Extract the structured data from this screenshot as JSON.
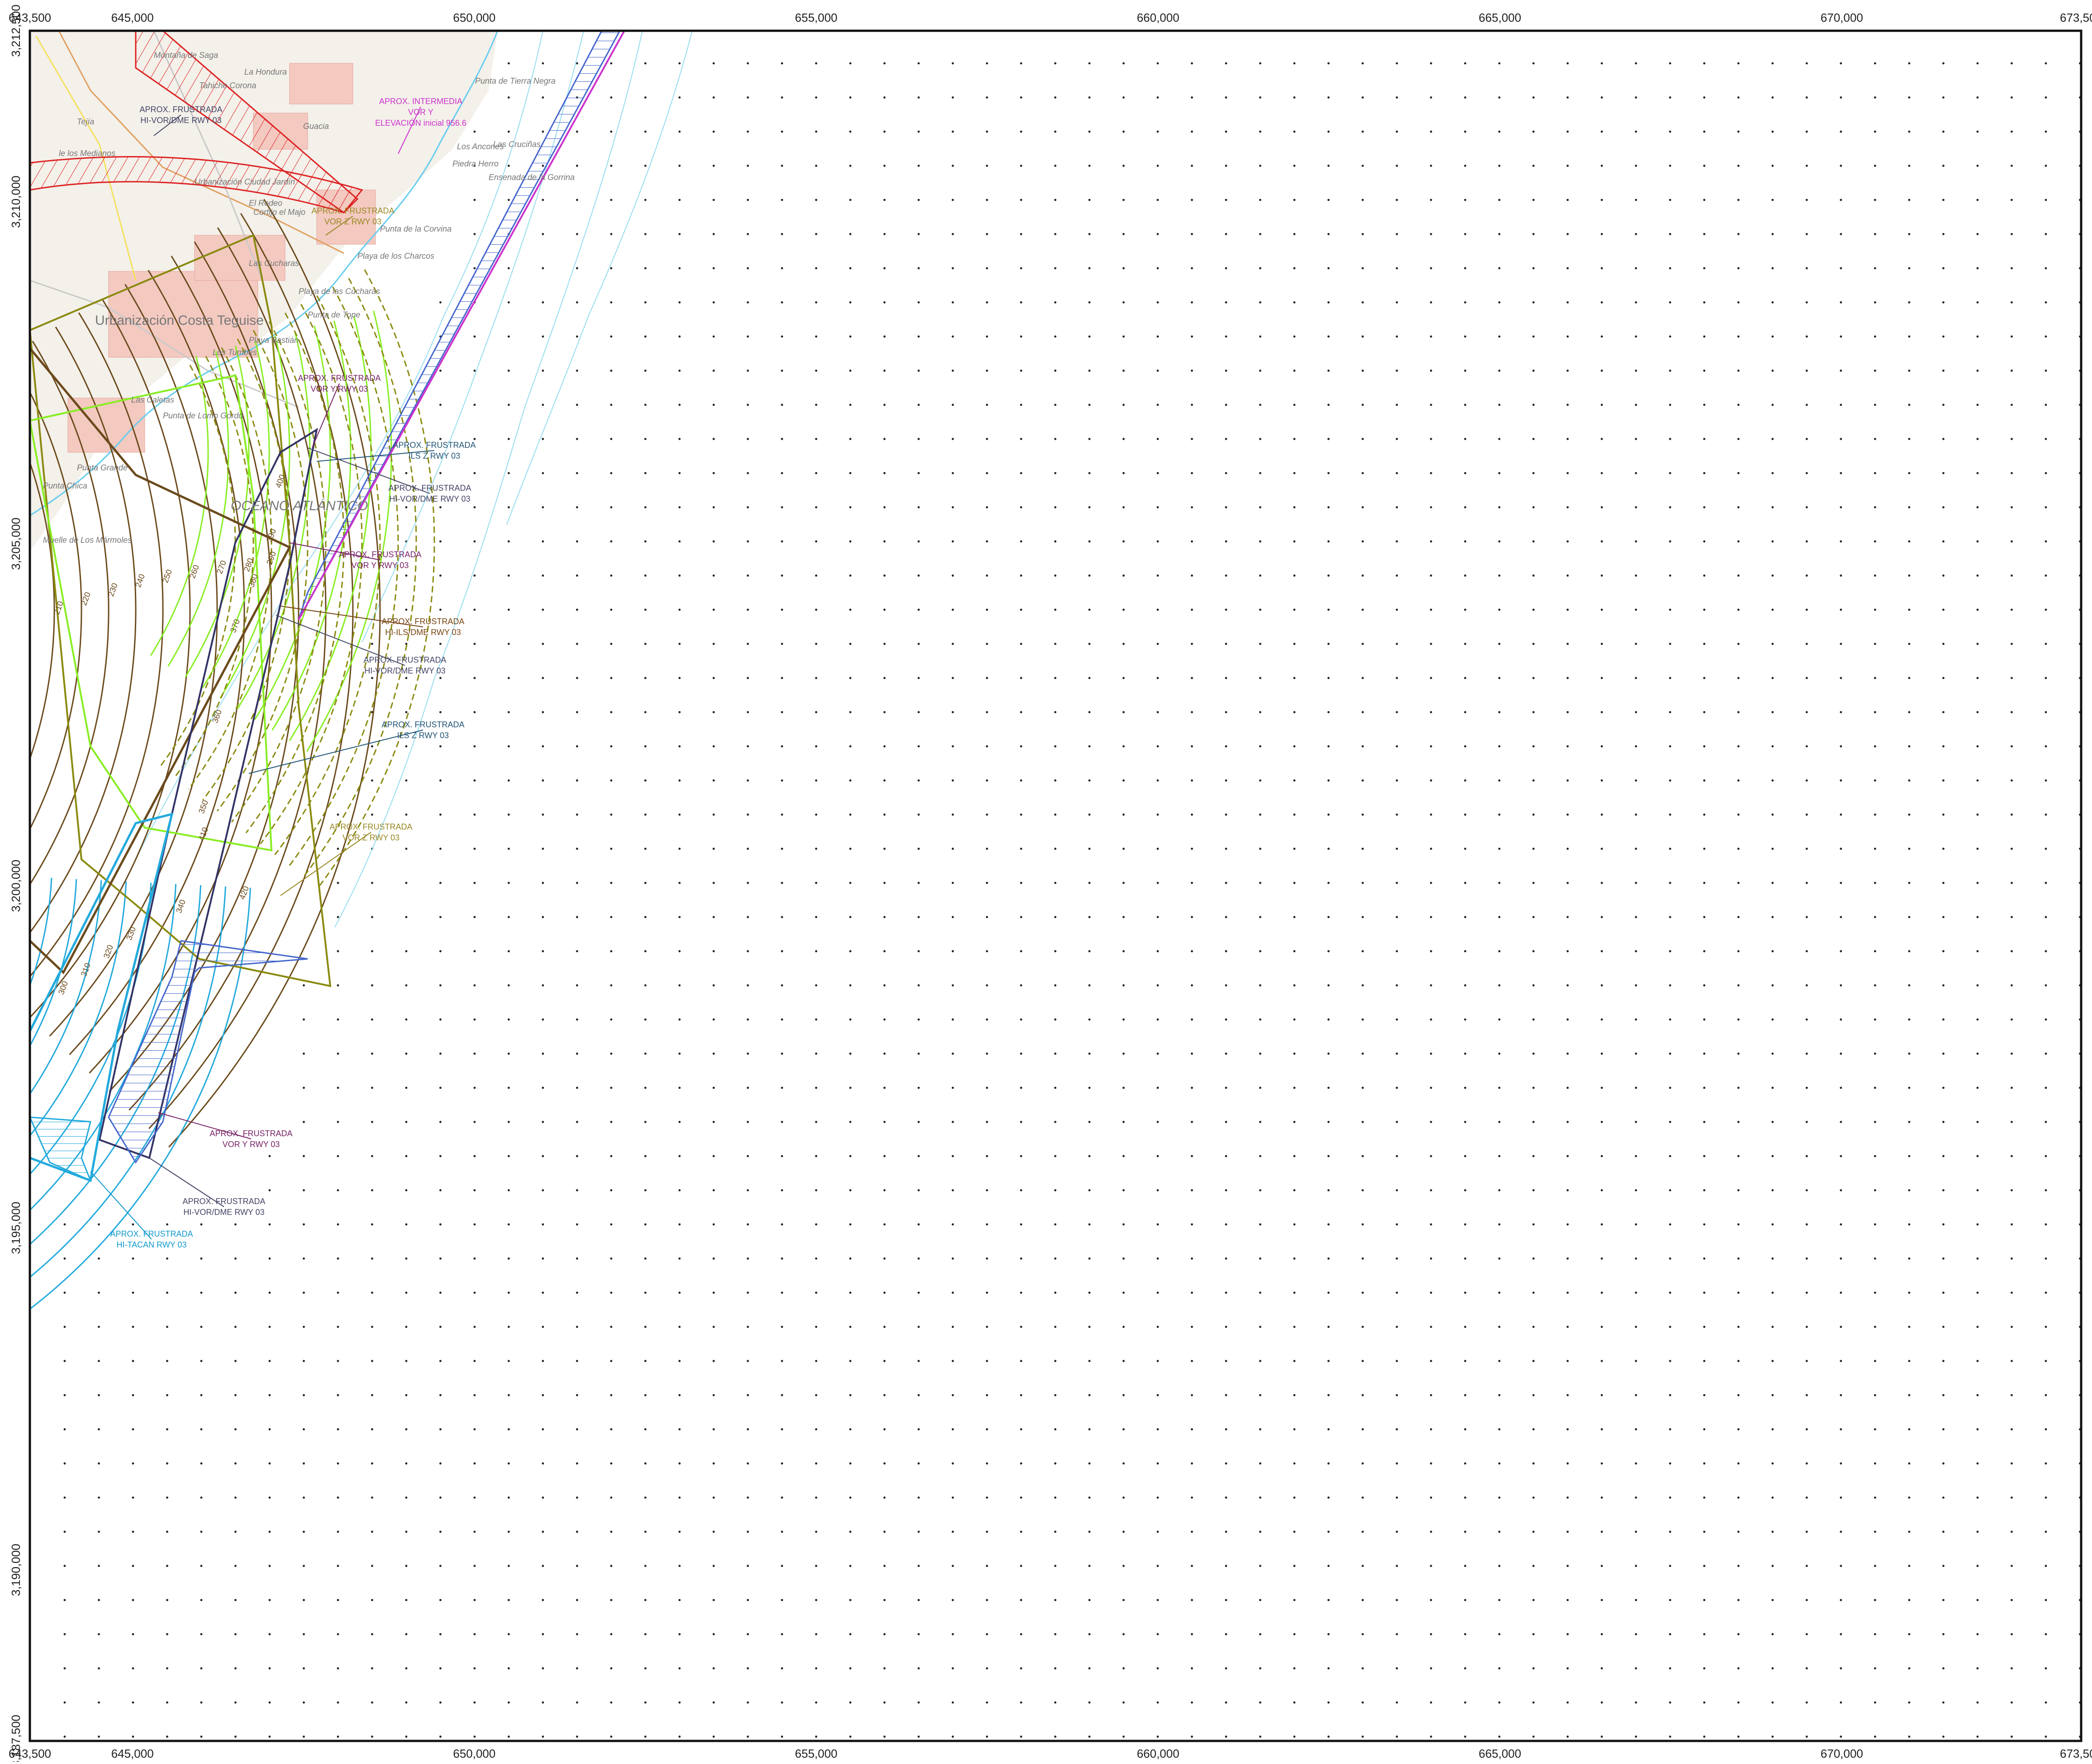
{
  "map": {
    "x_axis": {
      "min": 643500,
      "max": 673500,
      "top_labels": [
        "643,500",
        "645,000",
        "650,000",
        "655,000",
        "660,000",
        "665,000",
        "670,000",
        "673,500"
      ],
      "bottom_labels": [
        "643,500",
        "645,000",
        "650,000",
        "655,000",
        "660,000",
        "665,000",
        "670,000",
        "673,500"
      ],
      "values": [
        643500,
        645000,
        650000,
        655000,
        660000,
        665000,
        670000,
        673500
      ]
    },
    "y_axis": {
      "min": 3187500,
      "max": 3212500,
      "left_labels": [
        "3,212,500",
        "3,210,000",
        "3,205,000",
        "3,200,000",
        "3,195,000",
        "3,190,000",
        "3,187,500"
      ],
      "values": [
        3212500,
        3210000,
        3205000,
        3200000,
        3195000,
        3190000,
        3187500
      ]
    },
    "grid_points": "dotted",
    "places": [
      {
        "name": "Montaña de Saga"
      },
      {
        "name": "La Hondura"
      },
      {
        "name": "Punta de Tierra Negra"
      },
      {
        "name": "Tahiche Corona"
      },
      {
        "name": "Tejía"
      },
      {
        "name": "Guacia"
      },
      {
        "name": "Los Ancones"
      },
      {
        "name": "Las Cruciñas"
      },
      {
        "name": "Piedra Herro"
      },
      {
        "name": "Ensenada de la Gorrina"
      },
      {
        "name": "le los Medianos"
      },
      {
        "name": "Urbanización Ciudad Jardín"
      },
      {
        "name": "El Rodeo"
      },
      {
        "name": "Cortijo el Majo"
      },
      {
        "name": "Punta de la Corvina"
      },
      {
        "name": "Playa de los Charcos"
      },
      {
        "name": "Las Cucharas"
      },
      {
        "name": "Playa de las Cucharas"
      },
      {
        "name": "Punta de Tope"
      },
      {
        "name": "Urbanización Costa Teguise"
      },
      {
        "name": "Playa Bastián"
      },
      {
        "name": "Los Tumbes"
      },
      {
        "name": "Las Caletas"
      },
      {
        "name": "Punta de Lomo Gordo"
      },
      {
        "name": "Punta Grande"
      },
      {
        "name": "Punta Chica"
      },
      {
        "name": "Muelle de Los Mármoles"
      },
      {
        "name": "OCEANO ATLÁNTICO"
      }
    ],
    "callouts": [
      {
        "lines": [
          "APROX. FRUSTRADA",
          "HI-VOR/DME RWY 03"
        ],
        "color": "#444466"
      },
      {
        "lines": [
          "APROX. INTERMEDIA",
          "VOR Y",
          "ELEVACIÓN inicial 956.6"
        ],
        "color": "#cc33cc"
      },
      {
        "lines": [
          "APROX. FRUSTRADA",
          "VOR Z RWY 03"
        ],
        "color": "#998822"
      },
      {
        "lines": [
          "APROX. FRUSTRADA",
          "VOR Y RWY 03"
        ],
        "color": "#772266"
      },
      {
        "lines": [
          "APROX. FRUSTRADA",
          "ILS Z RWY 03"
        ],
        "color": "#225577"
      },
      {
        "lines": [
          "APROX. FRUSTRADA",
          "HI-VOR/DME RWY 03"
        ],
        "color": "#444466"
      },
      {
        "lines": [
          "APROX. FRUSTRADA",
          "VOR Y RWY 03"
        ],
        "color": "#772266"
      },
      {
        "lines": [
          "APROX. FRUSTRADA",
          "HI-ILS/DME RWY 03"
        ],
        "color": "#774411"
      },
      {
        "lines": [
          "APROX. FRUSTRADA",
          "HI-VOR/DME RWY 03"
        ],
        "color": "#444466"
      },
      {
        "lines": [
          "APROX. FRUSTRADA",
          "ILS Z RWY 03"
        ],
        "color": "#225577"
      },
      {
        "lines": [
          "APROX. FRUSTRADA",
          "VOR Z RWY 03"
        ],
        "color": "#998822"
      },
      {
        "lines": [
          "APROX. FRUSTRADA",
          "VOR Y RWY 03"
        ],
        "color": "#772266"
      },
      {
        "lines": [
          "APROX. FRUSTRADA",
          "HI-VOR/DME RWY 03"
        ],
        "color": "#444466"
      },
      {
        "lines": [
          "APROX. FRUSTRADA",
          "HI-TACAN RWY 03"
        ],
        "color": "#1199cc"
      }
    ],
    "contour_labels": [
      "210",
      "220",
      "230",
      "240",
      "250",
      "260",
      "270",
      "280",
      "290",
      "300",
      "310",
      "320",
      "330",
      "340",
      "350",
      "360",
      "370",
      "380",
      "390",
      "400",
      "410",
      "420"
    ],
    "colors": {
      "brown": "#6b4a1c",
      "olive": "#8a8a10",
      "green": "#88ee22",
      "cyan": "#22aadd",
      "blue": "#4466cc",
      "navy": "#333366",
      "magenta": "#cc33cc",
      "red": "#dd2222"
    }
  }
}
